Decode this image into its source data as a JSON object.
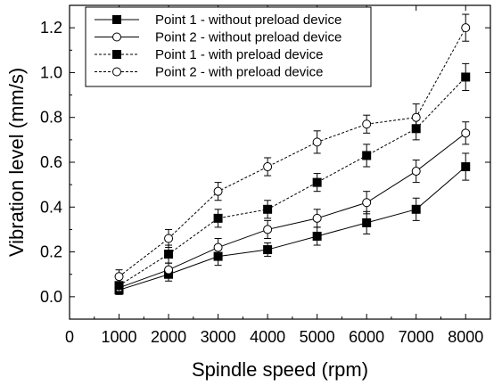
{
  "chart_data": {
    "type": "line",
    "title": "",
    "xlabel": "Spindle speed (rpm)",
    "ylabel": "Vibration level (mm/s)",
    "xlim": [
      0,
      8500
    ],
    "ylim": [
      -0.1,
      1.3
    ],
    "xticks": [
      0,
      1000,
      2000,
      3000,
      4000,
      5000,
      6000,
      7000,
      8000
    ],
    "yticks": [
      0.0,
      0.2,
      0.4,
      0.6,
      0.8,
      1.0,
      1.2
    ],
    "ytick_labels": [
      "0.0",
      "0.2",
      "0.4",
      "0.6",
      "0.8",
      "1.0",
      "1.2"
    ],
    "grid": false,
    "legend_position": "top-left",
    "x": [
      1000,
      2000,
      3000,
      4000,
      5000,
      6000,
      7000,
      8000
    ],
    "series": [
      {
        "name": "Point 1 - without preload device",
        "values": [
          0.03,
          0.1,
          0.18,
          0.21,
          0.27,
          0.33,
          0.39,
          0.58
        ],
        "errors": [
          0.02,
          0.03,
          0.04,
          0.03,
          0.04,
          0.05,
          0.05,
          0.06
        ],
        "marker": "filled-square",
        "line": "solid"
      },
      {
        "name": "Point 2 - without preload device",
        "values": [
          0.04,
          0.12,
          0.22,
          0.3,
          0.35,
          0.42,
          0.56,
          0.73
        ],
        "errors": [
          0.02,
          0.03,
          0.04,
          0.04,
          0.04,
          0.05,
          0.05,
          0.05
        ],
        "marker": "open-circle",
        "line": "solid"
      },
      {
        "name": "Point 1 - with preload device",
        "values": [
          0.05,
          0.19,
          0.35,
          0.39,
          0.51,
          0.63,
          0.75,
          0.98
        ],
        "errors": [
          0.03,
          0.04,
          0.04,
          0.04,
          0.04,
          0.05,
          0.05,
          0.06
        ],
        "marker": "filled-square",
        "line": "dashed"
      },
      {
        "name": "Point 2 - with preload device",
        "values": [
          0.09,
          0.26,
          0.47,
          0.58,
          0.69,
          0.77,
          0.8,
          1.2
        ],
        "errors": [
          0.03,
          0.04,
          0.04,
          0.04,
          0.05,
          0.04,
          0.06,
          0.06
        ],
        "marker": "open-circle",
        "line": "dashed"
      }
    ]
  },
  "colors": {
    "ink": "#000000",
    "background": "#ffffff"
  }
}
